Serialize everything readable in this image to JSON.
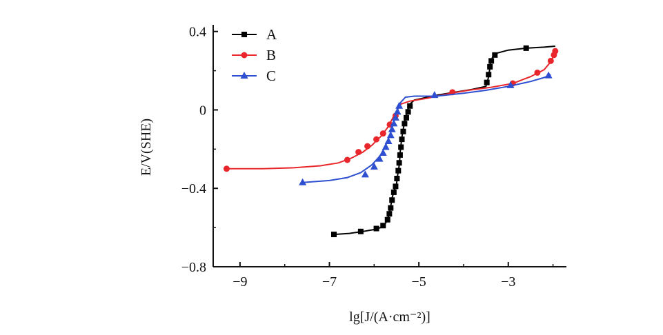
{
  "chart_data": {
    "type": "line",
    "xlabel": "lg[J/(A·cm⁻²)]",
    "ylabel": "E/V(SHE)",
    "xlim": [
      -9.6,
      -1.7
    ],
    "ylim": [
      -0.8,
      0.42
    ],
    "x_ticks": [
      -9,
      -7,
      -5,
      -3
    ],
    "x_tick_labels": [
      "−9",
      "−7",
      "−5",
      "−3"
    ],
    "y_ticks": [
      0.4,
      0,
      -0.4,
      -0.8
    ],
    "y_tick_labels": [
      "0.4",
      "0",
      "−0.4",
      "−0.8"
    ],
    "grid": false,
    "legend_position": "top-left",
    "series": [
      {
        "name": "A",
        "color": "#000000",
        "marker": "square",
        "points": [
          [
            -6.9,
            -0.635
          ],
          [
            -6.55,
            -0.63
          ],
          [
            -6.25,
            -0.62
          ],
          [
            -6.0,
            -0.61
          ],
          [
            -5.85,
            -0.6
          ],
          [
            -5.75,
            -0.58
          ],
          [
            -5.7,
            -0.56
          ],
          [
            -5.65,
            -0.52
          ],
          [
            -5.62,
            -0.48
          ],
          [
            -5.6,
            -0.45
          ],
          [
            -5.55,
            -0.41
          ],
          [
            -5.5,
            -0.38
          ],
          [
            -5.48,
            -0.34
          ],
          [
            -5.45,
            -0.3
          ],
          [
            -5.43,
            -0.26
          ],
          [
            -5.42,
            -0.22
          ],
          [
            -5.4,
            -0.18
          ],
          [
            -5.38,
            -0.14
          ],
          [
            -5.35,
            -0.1
          ],
          [
            -5.32,
            -0.06
          ],
          [
            -5.28,
            -0.03
          ],
          [
            -5.25,
            0.0
          ],
          [
            -5.2,
            0.03
          ],
          [
            -5.1,
            0.05
          ],
          [
            -4.9,
            0.06
          ],
          [
            -4.6,
            0.075
          ],
          [
            -4.2,
            0.09
          ],
          [
            -3.8,
            0.105
          ],
          [
            -3.5,
            0.12
          ],
          [
            -3.45,
            0.16
          ],
          [
            -3.42,
            0.2
          ],
          [
            -3.4,
            0.24
          ],
          [
            -3.35,
            0.27
          ],
          [
            -3.25,
            0.29
          ],
          [
            -3.0,
            0.305
          ],
          [
            -2.6,
            0.315
          ],
          [
            -2.2,
            0.32
          ],
          [
            -1.95,
            0.325
          ]
        ],
        "marker_points": [
          [
            -6.9,
            -0.635
          ],
          [
            -6.3,
            -0.62
          ],
          [
            -5.95,
            -0.605
          ],
          [
            -5.8,
            -0.59
          ],
          [
            -5.7,
            -0.56
          ],
          [
            -5.66,
            -0.53
          ],
          [
            -5.63,
            -0.5
          ],
          [
            -5.6,
            -0.46
          ],
          [
            -5.56,
            -0.42
          ],
          [
            -5.52,
            -0.39
          ],
          [
            -5.49,
            -0.35
          ],
          [
            -5.46,
            -0.31
          ],
          [
            -5.44,
            -0.27
          ],
          [
            -5.42,
            -0.23
          ],
          [
            -5.4,
            -0.19
          ],
          [
            -5.38,
            -0.15
          ],
          [
            -5.35,
            -0.11
          ],
          [
            -5.32,
            -0.07
          ],
          [
            -5.28,
            -0.04
          ],
          [
            -5.24,
            -0.01
          ],
          [
            -5.2,
            0.02
          ],
          [
            -3.48,
            0.14
          ],
          [
            -3.44,
            0.18
          ],
          [
            -3.41,
            0.22
          ],
          [
            -3.38,
            0.25
          ],
          [
            -3.3,
            0.28
          ],
          [
            -2.6,
            0.315
          ]
        ]
      },
      {
        "name": "B",
        "color": "#e8262b",
        "marker": "circle",
        "points": [
          [
            -9.3,
            -0.3
          ],
          [
            -8.5,
            -0.3
          ],
          [
            -7.8,
            -0.295
          ],
          [
            -7.2,
            -0.285
          ],
          [
            -6.8,
            -0.27
          ],
          [
            -6.5,
            -0.245
          ],
          [
            -6.25,
            -0.215
          ],
          [
            -6.05,
            -0.18
          ],
          [
            -5.85,
            -0.135
          ],
          [
            -5.7,
            -0.09
          ],
          [
            -5.58,
            -0.04
          ],
          [
            -5.48,
            0.0
          ],
          [
            -5.4,
            0.03
          ],
          [
            -5.2,
            0.045
          ],
          [
            -4.8,
            0.06
          ],
          [
            -4.4,
            0.08
          ],
          [
            -3.9,
            0.1
          ],
          [
            -3.4,
            0.115
          ],
          [
            -2.9,
            0.135
          ],
          [
            -2.5,
            0.17
          ],
          [
            -2.2,
            0.205
          ],
          [
            -2.05,
            0.245
          ],
          [
            -1.98,
            0.28
          ],
          [
            -1.95,
            0.31
          ]
        ],
        "marker_points": [
          [
            -9.3,
            -0.3
          ],
          [
            -6.6,
            -0.255
          ],
          [
            -6.35,
            -0.215
          ],
          [
            -6.15,
            -0.185
          ],
          [
            -5.95,
            -0.15
          ],
          [
            -5.8,
            -0.12
          ],
          [
            -5.65,
            -0.075
          ],
          [
            -5.52,
            -0.03
          ],
          [
            -4.25,
            0.09
          ],
          [
            -2.9,
            0.135
          ],
          [
            -2.35,
            0.19
          ],
          [
            -2.05,
            0.25
          ],
          [
            -1.98,
            0.28
          ],
          [
            -1.95,
            0.3
          ]
        ]
      },
      {
        "name": "C",
        "color": "#2f4fd1",
        "marker": "triangle",
        "points": [
          [
            -7.6,
            -0.37
          ],
          [
            -7.0,
            -0.36
          ],
          [
            -6.6,
            -0.345
          ],
          [
            -6.3,
            -0.32
          ],
          [
            -6.05,
            -0.28
          ],
          [
            -5.85,
            -0.23
          ],
          [
            -5.72,
            -0.17
          ],
          [
            -5.62,
            -0.11
          ],
          [
            -5.55,
            -0.05
          ],
          [
            -5.48,
            0.0
          ],
          [
            -5.4,
            0.04
          ],
          [
            -5.3,
            0.065
          ],
          [
            -5.1,
            0.07
          ],
          [
            -4.6,
            0.07
          ],
          [
            -4.0,
            0.085
          ],
          [
            -3.5,
            0.1
          ],
          [
            -3.0,
            0.12
          ],
          [
            -2.5,
            0.145
          ],
          [
            -2.2,
            0.165
          ],
          [
            -2.05,
            0.18
          ]
        ],
        "marker_points": [
          [
            -7.6,
            -0.37
          ],
          [
            -6.2,
            -0.33
          ],
          [
            -6.0,
            -0.29
          ],
          [
            -5.88,
            -0.25
          ],
          [
            -5.8,
            -0.22
          ],
          [
            -5.74,
            -0.19
          ],
          [
            -5.68,
            -0.16
          ],
          [
            -5.63,
            -0.13
          ],
          [
            -5.6,
            -0.1
          ],
          [
            -5.56,
            -0.07
          ],
          [
            -5.52,
            -0.04
          ],
          [
            -5.48,
            -0.01
          ],
          [
            -5.44,
            0.02
          ],
          [
            -4.65,
            0.075
          ],
          [
            -2.95,
            0.125
          ],
          [
            -2.1,
            0.175
          ]
        ]
      }
    ]
  }
}
